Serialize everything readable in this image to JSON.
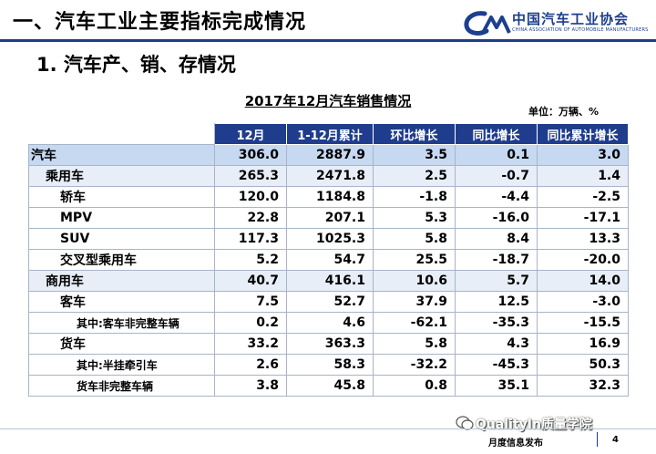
{
  "header": {
    "title": "一、汽车工业主要指标完成情况",
    "logo_name": "中国汽车工业协会",
    "logo_sub": "CHINA ASSOCIATION OF AUTOMOBILE MANUFACTURERS"
  },
  "section_title": "1. 汽车产、销、存情况",
  "table": {
    "title": "2017年12月汽车销售情况",
    "unit": "单位：万辆、%",
    "columns": [
      "12月",
      "1-12月累计",
      "环比增长",
      "同比增长",
      "同比累计增长"
    ],
    "rows": [
      {
        "label": "汽车",
        "values": [
          "306.0",
          "2887.9",
          "3.5",
          "0.1",
          "3.0"
        ]
      },
      {
        "label": "乘用车",
        "values": [
          "265.3",
          "2471.8",
          "2.5",
          "-0.7",
          "1.4"
        ]
      },
      {
        "label": "轿车",
        "values": [
          "120.0",
          "1184.8",
          "-1.8",
          "-4.4",
          "-2.5"
        ]
      },
      {
        "label": "MPV",
        "values": [
          "22.8",
          "207.1",
          "5.3",
          "-16.0",
          "-17.1"
        ]
      },
      {
        "label": "SUV",
        "values": [
          "117.3",
          "1025.3",
          "5.8",
          "8.4",
          "13.3"
        ]
      },
      {
        "label": "交叉型乘用车",
        "values": [
          "5.2",
          "54.7",
          "25.5",
          "-18.7",
          "-20.0"
        ]
      },
      {
        "label": "商用车",
        "values": [
          "40.7",
          "416.1",
          "10.6",
          "5.7",
          "14.0"
        ]
      },
      {
        "label": "客车",
        "values": [
          "7.5",
          "52.7",
          "37.9",
          "12.5",
          "-3.0"
        ]
      },
      {
        "label": "其中:客车非完整车辆",
        "values": [
          "0.2",
          "4.6",
          "-62.1",
          "-35.3",
          "-15.5"
        ]
      },
      {
        "label": "货车",
        "values": [
          "33.2",
          "363.3",
          "5.8",
          "4.3",
          "16.9"
        ]
      },
      {
        "label": "其中:半挂牵引车",
        "values": [
          "2.6",
          "58.3",
          "-32.2",
          "-45.3",
          "50.3"
        ]
      },
      {
        "label": "货车非完整车辆",
        "values": [
          "3.8",
          "45.8",
          "0.8",
          "35.1",
          "32.3"
        ]
      }
    ]
  },
  "footer": {
    "label": "月度信息发布",
    "page": "4",
    "watermark": "QualityIn质量学院"
  },
  "colors": {
    "brand_navy": "#1f3d8c",
    "row_level0": "#c6d9f1",
    "row_level1": "#e7eef8"
  }
}
